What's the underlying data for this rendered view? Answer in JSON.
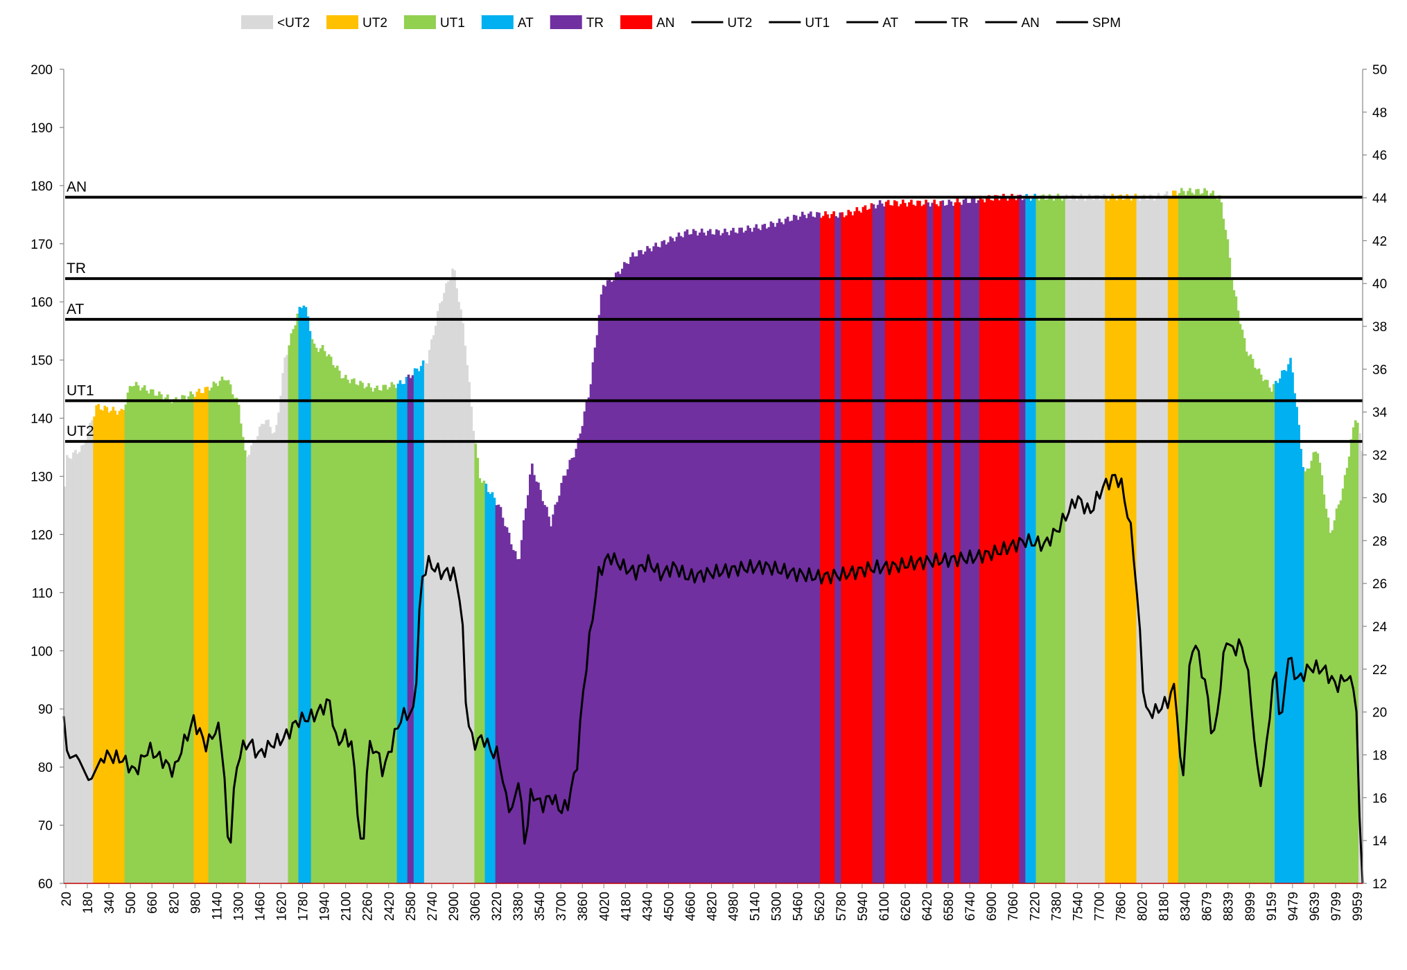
{
  "chart_data": {
    "type": "bar",
    "title": "",
    "xlabel": "",
    "ylabel": "",
    "ylim": [
      60,
      200
    ],
    "y2lim": [
      12,
      50
    ],
    "yticks": [
      60,
      70,
      80,
      90,
      100,
      110,
      120,
      130,
      140,
      150,
      160,
      170,
      180,
      190,
      200
    ],
    "y2ticks": [
      12,
      14,
      16,
      18,
      20,
      22,
      24,
      26,
      28,
      30,
      32,
      34,
      36,
      38,
      40,
      42,
      44,
      46,
      48,
      50
    ],
    "xticks": [
      "20",
      "180",
      "340",
      "500",
      "660",
      "820",
      "980",
      "1140",
      "1300",
      "1460",
      "1620",
      "1780",
      "1940",
      "2100",
      "2260",
      "2420",
      "2580",
      "2740",
      "2900",
      "3060",
      "3220",
      "3380",
      "3540",
      "3700",
      "3860",
      "4020",
      "4180",
      "4340",
      "4500",
      "4660",
      "4820",
      "4980",
      "5140",
      "5300",
      "5460",
      "5620",
      "5780",
      "5940",
      "6100",
      "6260",
      "6420",
      "6580",
      "6740",
      "6900",
      "7060",
      "7220",
      "7380",
      "7540",
      "7700",
      "7860",
      "8020",
      "8180",
      "8340",
      "8679",
      "8839",
      "8999",
      "9159",
      "9479",
      "9639",
      "9799",
      "9959"
    ],
    "grid": false,
    "legend_position": "top",
    "zones": [
      {
        "name": "<UT2",
        "color": "#d9d9d9"
      },
      {
        "name": "UT2",
        "color": "#ffc000"
      },
      {
        "name": "UT1",
        "color": "#92d050"
      },
      {
        "name": "AT",
        "color": "#00b0f0"
      },
      {
        "name": "TR",
        "color": "#7030a0"
      },
      {
        "name": "AN",
        "color": "#ff0000"
      }
    ],
    "thresholds": [
      {
        "name": "UT2",
        "value": 136
      },
      {
        "name": "UT1",
        "value": 143
      },
      {
        "name": "AT",
        "value": 157
      },
      {
        "name": "TR",
        "value": 164
      },
      {
        "name": "AN",
        "value": 178
      }
    ],
    "line_legend": [
      "UT2",
      "UT1",
      "AT",
      "TR",
      "AN",
      "SPM"
    ],
    "hr_profile": [
      [
        0,
        125
      ],
      [
        0.2,
        133
      ],
      [
        1.5,
        135
      ],
      [
        2.5,
        142
      ],
      [
        4.5,
        141
      ],
      [
        5.2,
        146
      ],
      [
        8.5,
        143
      ],
      [
        11,
        145
      ],
      [
        12.5,
        147
      ],
      [
        13.5,
        142
      ],
      [
        14,
        133
      ],
      [
        15.5,
        140
      ],
      [
        16.3,
        137
      ],
      [
        17,
        150
      ],
      [
        18,
        158
      ],
      [
        18.5,
        160
      ],
      [
        19.3,
        152
      ],
      [
        20,
        152
      ],
      [
        21.5,
        147
      ],
      [
        24,
        145
      ],
      [
        26,
        146
      ],
      [
        28,
        150
      ],
      [
        29,
        160
      ],
      [
        30,
        166
      ],
      [
        30.8,
        155
      ],
      [
        31.5,
        139
      ],
      [
        32,
        130
      ],
      [
        33.5,
        125
      ],
      [
        35,
        115
      ],
      [
        36,
        132
      ],
      [
        37.5,
        122
      ],
      [
        38.5,
        130
      ],
      [
        39.5,
        135
      ],
      [
        40.5,
        145
      ],
      [
        41.5,
        163
      ],
      [
        42.3,
        164
      ],
      [
        43.8,
        168
      ],
      [
        46,
        170
      ],
      [
        48,
        172
      ],
      [
        51,
        172
      ],
      [
        54,
        173
      ],
      [
        57,
        175
      ],
      [
        60,
        175
      ],
      [
        61.5,
        176
      ],
      [
        63,
        177
      ],
      [
        68,
        177
      ],
      [
        72,
        178
      ],
      [
        78,
        178
      ],
      [
        84,
        178
      ],
      [
        86,
        179
      ],
      [
        88,
        179
      ],
      [
        89,
        178
      ],
      [
        89.5,
        172
      ],
      [
        90,
        163
      ],
      [
        91,
        152
      ],
      [
        92,
        148
      ],
      [
        93,
        145
      ],
      [
        94.5,
        150
      ],
      [
        95.5,
        130
      ],
      [
        96.5,
        135
      ],
      [
        97.5,
        120
      ],
      [
        98.5,
        128
      ],
      [
        99.5,
        141
      ],
      [
        100,
        133
      ]
    ],
    "zone_runs": [
      [
        0,
        2.2,
        "<UT2"
      ],
      [
        2.2,
        4.6,
        "UT2"
      ],
      [
        4.6,
        10,
        "UT1"
      ],
      [
        10,
        11.2,
        "UT2"
      ],
      [
        11.2,
        14,
        "UT1"
      ],
      [
        14,
        17.3,
        "<UT2"
      ],
      [
        17.3,
        18,
        "UT1"
      ],
      [
        18,
        19,
        "AT"
      ],
      [
        19,
        25.7,
        "UT1"
      ],
      [
        25.7,
        26.5,
        "AT"
      ],
      [
        26.5,
        27,
        "TR"
      ],
      [
        27,
        27.8,
        "AT"
      ],
      [
        27.8,
        31.6,
        "<UT2"
      ],
      [
        31.6,
        32.4,
        "UT1"
      ],
      [
        32.4,
        33.3,
        "AT"
      ],
      [
        33.3,
        58.3,
        "TR"
      ],
      [
        58.3,
        59.4,
        "AN"
      ],
      [
        59.4,
        59.9,
        "TR"
      ],
      [
        59.9,
        62.3,
        "AN"
      ],
      [
        62.3,
        63.2,
        "TR"
      ],
      [
        63.2,
        66.5,
        "AN"
      ],
      [
        66.5,
        67,
        "TR"
      ],
      [
        67,
        67.6,
        "AN"
      ],
      [
        67.6,
        68.5,
        "TR"
      ],
      [
        68.5,
        69,
        "AN"
      ],
      [
        69,
        70.5,
        "TR"
      ],
      [
        70.5,
        73.6,
        "AN"
      ],
      [
        73.6,
        74.1,
        "TR"
      ],
      [
        74.1,
        74.9,
        "AT"
      ],
      [
        74.9,
        77.1,
        "UT1"
      ],
      [
        77.1,
        80.2,
        "<UT2"
      ],
      [
        80.2,
        82.6,
        "UT2"
      ],
      [
        82.6,
        85,
        "<UT2"
      ],
      [
        85,
        85.8,
        "UT2"
      ],
      [
        85.8,
        93.2,
        "UT1"
      ],
      [
        93.2,
        95.5,
        "AT"
      ],
      [
        95.5,
        99.7,
        "UT1"
      ],
      [
        99.7,
        100,
        "<UT2"
      ]
    ],
    "spm_profile": [
      [
        0,
        19.8
      ],
      [
        0.3,
        17.8
      ],
      [
        1,
        18
      ],
      [
        2,
        16.7
      ],
      [
        3,
        18
      ],
      [
        4.5,
        17.8
      ],
      [
        5.5,
        17.2
      ],
      [
        6.5,
        18.3
      ],
      [
        7.5,
        17.8
      ],
      [
        8.5,
        17.2
      ],
      [
        9,
        18.2
      ],
      [
        10,
        19.6
      ],
      [
        11,
        18.4
      ],
      [
        11.6,
        19.1
      ],
      [
        12,
        19.2
      ],
      [
        12.3,
        17.8
      ],
      [
        12.7,
        13
      ],
      [
        13.2,
        17
      ],
      [
        13.6,
        18.2
      ],
      [
        14.3,
        18.6
      ],
      [
        15,
        18
      ],
      [
        16,
        18.5
      ],
      [
        17,
        18.8
      ],
      [
        18,
        19.6
      ],
      [
        19.2,
        19.8
      ],
      [
        20.5,
        20.5
      ],
      [
        21,
        18.5
      ],
      [
        21.6,
        18.9
      ],
      [
        22.2,
        18.5
      ],
      [
        23,
        12.8
      ],
      [
        23.4,
        18.3
      ],
      [
        24,
        18.3
      ],
      [
        24.6,
        17.2
      ],
      [
        25.3,
        18.6
      ],
      [
        26,
        19.8
      ],
      [
        27,
        20
      ],
      [
        27.5,
        26
      ],
      [
        28,
        27
      ],
      [
        29,
        26.5
      ],
      [
        30,
        26.5
      ],
      [
        30.6,
        25.2
      ],
      [
        31,
        20
      ],
      [
        31.5,
        18.5
      ],
      [
        32.3,
        18.8
      ],
      [
        33,
        18.1
      ],
      [
        33.5,
        18
      ],
      [
        34,
        16
      ],
      [
        34.6,
        15.3
      ],
      [
        35,
        17
      ],
      [
        35.5,
        13.8
      ],
      [
        36,
        16.3
      ],
      [
        36.8,
        15.6
      ],
      [
        37.5,
        16.1
      ],
      [
        38.3,
        15.4
      ],
      [
        38.8,
        15.7
      ],
      [
        39.5,
        17.5
      ],
      [
        40,
        21
      ],
      [
        40.6,
        24
      ],
      [
        41.2,
        26.5
      ],
      [
        42,
        27.3
      ],
      [
        43,
        26.8
      ],
      [
        44,
        26.5
      ],
      [
        45,
        27
      ],
      [
        46,
        26.4
      ],
      [
        47,
        26.8
      ],
      [
        48,
        26.3
      ],
      [
        50,
        26.5
      ],
      [
        52,
        26.7
      ],
      [
        54,
        26.8
      ],
      [
        56,
        26.5
      ],
      [
        58,
        26.3
      ],
      [
        60,
        26.4
      ],
      [
        62,
        26.7
      ],
      [
        64,
        26.8
      ],
      [
        66,
        27
      ],
      [
        68,
        27.1
      ],
      [
        70,
        27.2
      ],
      [
        72,
        27.5
      ],
      [
        74,
        28
      ],
      [
        75.5,
        27.8
      ],
      [
        76.5,
        28.5
      ],
      [
        77.5,
        29.5
      ],
      [
        78,
        30
      ],
      [
        79,
        29.3
      ],
      [
        80,
        30.5
      ],
      [
        81,
        31
      ],
      [
        81.5,
        30.5
      ],
      [
        82.3,
        28
      ],
      [
        83,
        22.5
      ],
      [
        83.2,
        20
      ],
      [
        84,
        20
      ],
      [
        85,
        20.5
      ],
      [
        85.6,
        21.3
      ],
      [
        86.1,
        16.1
      ],
      [
        86.6,
        21.5
      ],
      [
        87,
        23.5
      ],
      [
        88,
        21
      ],
      [
        88.5,
        18.5
      ],
      [
        89,
        21
      ],
      [
        89.5,
        23.5
      ],
      [
        90,
        22.8
      ],
      [
        90.5,
        23.2
      ],
      [
        91,
        22.6
      ],
      [
        91.5,
        20
      ],
      [
        92,
        16.5
      ],
      [
        92.5,
        17.7
      ],
      [
        93,
        21
      ],
      [
        93.4,
        22
      ],
      [
        93.7,
        18.8
      ],
      [
        94.2,
        22.7
      ],
      [
        95,
        21.5
      ],
      [
        96,
        22.1
      ],
      [
        97,
        22
      ],
      [
        98,
        21.2
      ],
      [
        99,
        21.8
      ],
      [
        99.5,
        20.5
      ],
      [
        99.8,
        14.3
      ],
      [
        100,
        12
      ]
    ]
  }
}
